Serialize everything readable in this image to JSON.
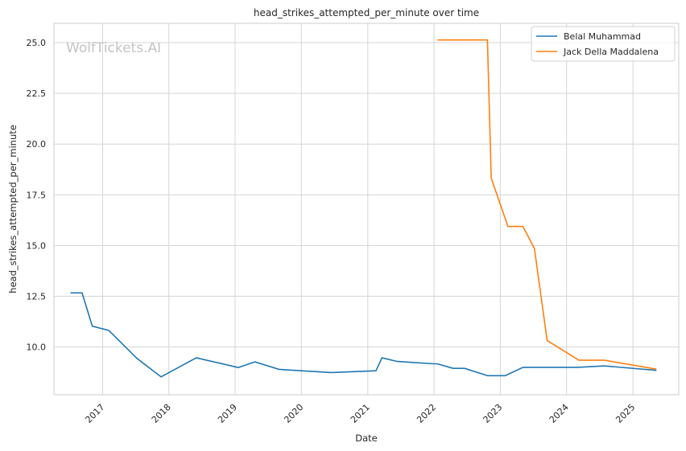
{
  "chart_data": {
    "type": "line",
    "title": "head_strikes_attempted_per_minute over time",
    "xlabel": "Date",
    "ylabel": "head_strikes_attempted_per_minute",
    "watermark": "WolfTickets.AI",
    "x_ticks": [
      "2017",
      "2018",
      "2019",
      "2020",
      "2021",
      "2022",
      "2023",
      "2024",
      "2025"
    ],
    "y_ticks": [
      "10.0",
      "12.5",
      "15.0",
      "17.5",
      "20.0",
      "22.5",
      "25.0"
    ],
    "xlim": [
      "2016-04-08",
      "2025-09-10"
    ],
    "ylim": [
      7.65,
      25.95
    ],
    "grid": true,
    "legend_position": "top-right",
    "series": [
      {
        "name": "Belal Muhammad",
        "color": "#1f77b4",
        "points": [
          [
            "2016-07-08",
            12.67
          ],
          [
            "2016-09-10",
            12.67
          ],
          [
            "2016-11-05",
            11.03
          ],
          [
            "2017-02-04",
            10.82
          ],
          [
            "2017-07-08",
            9.45
          ],
          [
            "2017-11-19",
            8.53
          ],
          [
            "2018-06-01",
            9.47
          ],
          [
            "2019-01-19",
            8.99
          ],
          [
            "2019-04-20",
            9.27
          ],
          [
            "2019-08-31",
            8.9
          ],
          [
            "2020-06-13",
            8.74
          ],
          [
            "2021-02-15",
            8.83
          ],
          [
            "2021-03-20",
            9.47
          ],
          [
            "2021-06-12",
            9.29
          ],
          [
            "2021-12-20",
            9.18
          ],
          [
            "2022-01-20",
            9.17
          ],
          [
            "2022-04-16",
            8.95
          ],
          [
            "2022-06-18",
            8.95
          ],
          [
            "2022-10-22",
            8.59
          ],
          [
            "2023-01-28",
            8.59
          ],
          [
            "2023-05-06",
            9.0
          ],
          [
            "2024-03-01",
            9.0
          ],
          [
            "2024-07-27",
            9.07
          ],
          [
            "2025-05-10",
            8.85
          ]
        ]
      },
      {
        "name": "Jack Della Maddalena",
        "color": "#ff7f0e",
        "points": [
          [
            "2022-01-20",
            25.13
          ],
          [
            "2022-10-22",
            25.13
          ],
          [
            "2022-11-12",
            18.32
          ],
          [
            "2023-02-12",
            15.94
          ],
          [
            "2023-05-06",
            15.94
          ],
          [
            "2023-07-08",
            14.85
          ],
          [
            "2023-09-16",
            10.32
          ],
          [
            "2024-03-09",
            9.35
          ],
          [
            "2024-07-27",
            9.35
          ],
          [
            "2025-05-10",
            8.91
          ]
        ]
      }
    ]
  }
}
